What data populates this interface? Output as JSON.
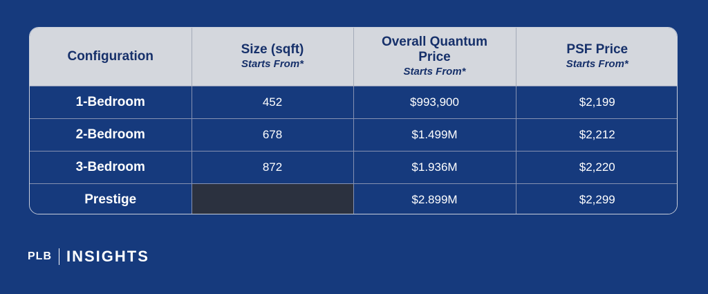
{
  "table": {
    "headers": [
      {
        "main": "Configuration",
        "sub": ""
      },
      {
        "main": "Size (sqft)",
        "sub": "Starts From*"
      },
      {
        "main": "Overall Quantum Price",
        "sub": "Starts From*"
      },
      {
        "main": "PSF Price",
        "sub": "Starts From*"
      }
    ],
    "rows": [
      {
        "config": "1-Bedroom",
        "size": "452",
        "quantum": "$993,900",
        "psf": "$2,199"
      },
      {
        "config": "2-Bedroom",
        "size": "678",
        "quantum": "$1.499M",
        "psf": "$2,212"
      },
      {
        "config": "3-Bedroom",
        "size": "872",
        "quantum": "$1.936M",
        "psf": "$2,220"
      },
      {
        "config": "Prestige",
        "size": "",
        "quantum": "$2.899M",
        "psf": "$2,299"
      }
    ]
  },
  "brand": {
    "left": "PLB",
    "right": "INSIGHTS"
  },
  "colors": {
    "background": "#163a7d",
    "header_bg": "#d4d7dd",
    "header_text": "#16306a",
    "blank_cell": "#2b313f"
  }
}
